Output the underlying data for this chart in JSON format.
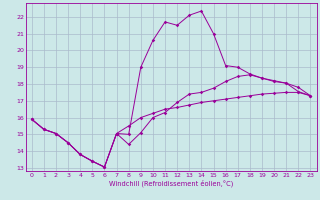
{
  "xlabel": "Windchill (Refroidissement éolien,°C)",
  "bg_color": "#cce8e8",
  "grid_color": "#aabbcc",
  "line_color": "#990099",
  "xlim": [
    -0.5,
    23.5
  ],
  "ylim": [
    12.8,
    22.8
  ],
  "xticks": [
    0,
    1,
    2,
    3,
    4,
    5,
    6,
    7,
    8,
    9,
    10,
    11,
    12,
    13,
    14,
    15,
    16,
    17,
    18,
    19,
    20,
    21,
    22,
    23
  ],
  "yticks": [
    13,
    14,
    15,
    16,
    17,
    18,
    19,
    20,
    21,
    22
  ],
  "series1_x": [
    0,
    1,
    2,
    3,
    4,
    5,
    6,
    7,
    8,
    9,
    10,
    11,
    12,
    13,
    14,
    15,
    16,
    17,
    18,
    19,
    20,
    21,
    22,
    23
  ],
  "series1_y": [
    15.9,
    15.3,
    15.05,
    14.5,
    13.8,
    13.4,
    13.05,
    15.05,
    15.5,
    16.0,
    16.25,
    16.5,
    16.6,
    16.75,
    16.9,
    17.0,
    17.1,
    17.2,
    17.3,
    17.4,
    17.45,
    17.5,
    17.5,
    17.3
  ],
  "series2_x": [
    0,
    1,
    2,
    3,
    4,
    5,
    6,
    7,
    8,
    9,
    10,
    11,
    12,
    13,
    14,
    15,
    16,
    17,
    18,
    19,
    20,
    21,
    22,
    23
  ],
  "series2_y": [
    15.9,
    15.3,
    15.05,
    14.5,
    13.8,
    13.4,
    13.05,
    15.05,
    15.0,
    19.0,
    20.6,
    21.7,
    21.5,
    22.1,
    22.35,
    21.0,
    19.1,
    19.0,
    18.6,
    18.35,
    18.15,
    18.05,
    17.55,
    17.3
  ],
  "series3_x": [
    0,
    1,
    2,
    3,
    4,
    5,
    6,
    7,
    8,
    9,
    10,
    11,
    12,
    13,
    14,
    15,
    16,
    17,
    18,
    19,
    20,
    21,
    22,
    23
  ],
  "series3_y": [
    15.9,
    15.3,
    15.05,
    14.5,
    13.8,
    13.4,
    13.05,
    15.05,
    14.4,
    15.1,
    16.0,
    16.3,
    16.9,
    17.4,
    17.5,
    17.75,
    18.15,
    18.45,
    18.55,
    18.35,
    18.2,
    18.05,
    17.8,
    17.3
  ]
}
